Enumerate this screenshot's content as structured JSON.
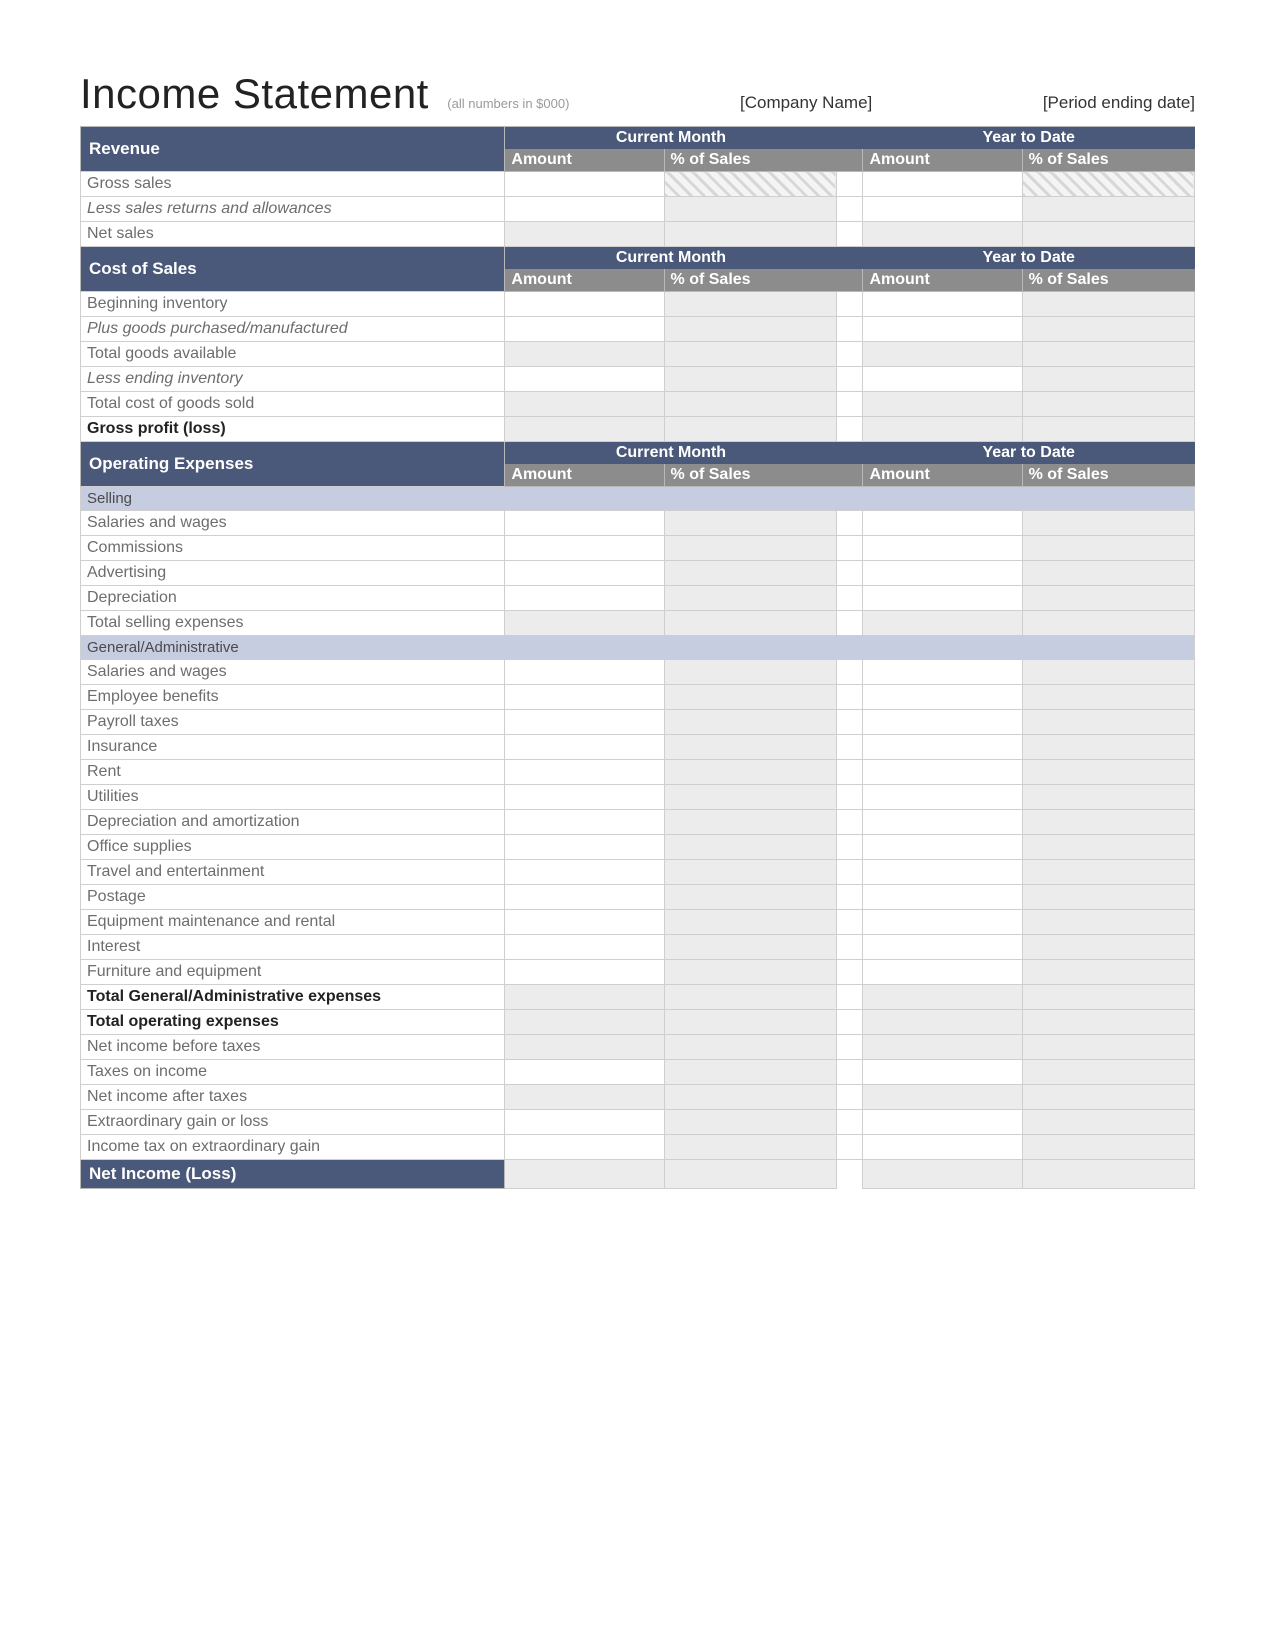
{
  "header": {
    "title": "Income Statement",
    "subtitle": "(all numbers in $000)",
    "company_name": "[Company Name]",
    "period": "[Period ending date]"
  },
  "colors": {
    "section_header_bg": "#4a5879",
    "col_header_bg": "#8c8c8c",
    "subsection_bg": "#c7cde0",
    "cell_gray": "#ececec",
    "border": "#cfcfcf",
    "text_muted": "#6d6d6d"
  },
  "column_headers": {
    "current_month": "Current Month",
    "year_to_date": "Year to Date",
    "amount": "Amount",
    "pct_of_sales": "% of Sales"
  },
  "sections": [
    {
      "title": "Revenue",
      "rows": [
        {
          "label": "Gross sales",
          "italic": false,
          "bold": false,
          "cells": [
            "white",
            "hatch",
            "white",
            "hatch"
          ]
        },
        {
          "label": "Less sales returns and allowances",
          "italic": true,
          "bold": false,
          "cells": [
            "white",
            "gray",
            "white",
            "gray"
          ]
        },
        {
          "label": "Net sales",
          "italic": false,
          "bold": false,
          "cells": [
            "gray",
            "gray",
            "gray",
            "gray"
          ]
        }
      ]
    },
    {
      "title": "Cost of Sales",
      "rows": [
        {
          "label": "Beginning inventory",
          "italic": false,
          "bold": false,
          "cells": [
            "white",
            "gray",
            "white",
            "gray"
          ]
        },
        {
          "label": "Plus goods purchased/manufactured",
          "italic": true,
          "bold": false,
          "cells": [
            "white",
            "gray",
            "white",
            "gray"
          ]
        },
        {
          "label": "Total goods available",
          "italic": false,
          "bold": false,
          "cells": [
            "gray",
            "gray",
            "gray",
            "gray"
          ]
        },
        {
          "label": "Less ending inventory",
          "italic": true,
          "bold": false,
          "cells": [
            "white",
            "gray",
            "white",
            "gray"
          ]
        },
        {
          "label": "Total cost of goods sold",
          "italic": false,
          "bold": false,
          "cells": [
            "gray",
            "gray",
            "gray",
            "gray"
          ]
        },
        {
          "label": "Gross profit (loss)",
          "italic": false,
          "bold": true,
          "cells": [
            "gray",
            "gray",
            "gray",
            "gray"
          ]
        }
      ]
    },
    {
      "title": "Operating Expenses",
      "subsections": [
        {
          "title": "Selling",
          "rows": [
            {
              "label": "Salaries and wages",
              "italic": false,
              "bold": false,
              "cells": [
                "white",
                "gray",
                "white",
                "gray"
              ]
            },
            {
              "label": "Commissions",
              "italic": false,
              "bold": false,
              "cells": [
                "white",
                "gray",
                "white",
                "gray"
              ]
            },
            {
              "label": "Advertising",
              "italic": false,
              "bold": false,
              "cells": [
                "white",
                "gray",
                "white",
                "gray"
              ]
            },
            {
              "label": "Depreciation",
              "italic": false,
              "bold": false,
              "cells": [
                "white",
                "gray",
                "white",
                "gray"
              ]
            },
            {
              "label": "Total selling expenses",
              "italic": false,
              "bold": false,
              "cells": [
                "gray",
                "gray",
                "gray",
                "gray"
              ]
            }
          ]
        },
        {
          "title": "General/Administrative",
          "rows": [
            {
              "label": "Salaries and wages",
              "italic": false,
              "bold": false,
              "cells": [
                "white",
                "gray",
                "white",
                "gray"
              ]
            },
            {
              "label": "Employee benefits",
              "italic": false,
              "bold": false,
              "cells": [
                "white",
                "gray",
                "white",
                "gray"
              ]
            },
            {
              "label": "Payroll taxes",
              "italic": false,
              "bold": false,
              "cells": [
                "white",
                "gray",
                "white",
                "gray"
              ]
            },
            {
              "label": "Insurance",
              "italic": false,
              "bold": false,
              "cells": [
                "white",
                "gray",
                "white",
                "gray"
              ]
            },
            {
              "label": "Rent",
              "italic": false,
              "bold": false,
              "cells": [
                "white",
                "gray",
                "white",
                "gray"
              ]
            },
            {
              "label": "Utilities",
              "italic": false,
              "bold": false,
              "cells": [
                "white",
                "gray",
                "white",
                "gray"
              ]
            },
            {
              "label": "Depreciation and amortization",
              "italic": false,
              "bold": false,
              "cells": [
                "white",
                "gray",
                "white",
                "gray"
              ]
            },
            {
              "label": "Office supplies",
              "italic": false,
              "bold": false,
              "cells": [
                "white",
                "gray",
                "white",
                "gray"
              ]
            },
            {
              "label": "Travel and entertainment",
              "italic": false,
              "bold": false,
              "cells": [
                "white",
                "gray",
                "white",
                "gray"
              ]
            },
            {
              "label": "Postage",
              "italic": false,
              "bold": false,
              "cells": [
                "white",
                "gray",
                "white",
                "gray"
              ]
            },
            {
              "label": "Equipment maintenance and rental",
              "italic": false,
              "bold": false,
              "cells": [
                "white",
                "gray",
                "white",
                "gray"
              ]
            },
            {
              "label": "Interest",
              "italic": false,
              "bold": false,
              "cells": [
                "white",
                "gray",
                "white",
                "gray"
              ]
            },
            {
              "label": "Furniture and equipment",
              "italic": false,
              "bold": false,
              "cells": [
                "white",
                "gray",
                "white",
                "gray"
              ]
            },
            {
              "label": "Total General/Administrative expenses",
              "italic": false,
              "bold": true,
              "cells": [
                "gray",
                "gray",
                "gray",
                "gray"
              ]
            }
          ]
        }
      ],
      "trailing_rows": [
        {
          "label": "Total operating expenses",
          "italic": false,
          "bold": true,
          "cells": [
            "gray",
            "gray",
            "gray",
            "gray"
          ]
        },
        {
          "label": "Net income before taxes",
          "italic": false,
          "bold": false,
          "cells": [
            "gray",
            "gray",
            "gray",
            "gray"
          ]
        },
        {
          "label": "Taxes on income",
          "italic": false,
          "bold": false,
          "cells": [
            "white",
            "gray",
            "white",
            "gray"
          ]
        },
        {
          "label": "Net income after taxes",
          "italic": false,
          "bold": false,
          "cells": [
            "gray",
            "gray",
            "gray",
            "gray"
          ]
        },
        {
          "label": "Extraordinary gain or loss",
          "italic": false,
          "bold": false,
          "cells": [
            "white",
            "gray",
            "white",
            "gray"
          ]
        },
        {
          "label": "Income tax on extraordinary gain",
          "italic": false,
          "bold": false,
          "cells": [
            "white",
            "gray",
            "white",
            "gray"
          ]
        }
      ]
    }
  ],
  "net_income_label": "Net Income (Loss)"
}
